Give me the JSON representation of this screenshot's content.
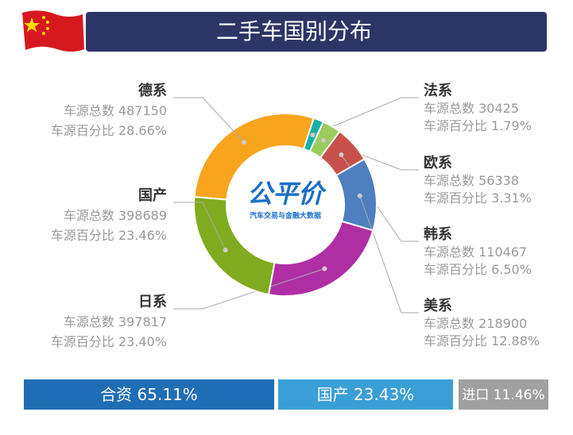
{
  "chart_data": {
    "type": "pie",
    "title": "二手车国别分布",
    "logo": {
      "name": "公平价",
      "tagline": "汽车交易与金融大数据"
    },
    "categories": [
      "德系",
      "法系",
      "欧系",
      "韩系",
      "美系",
      "日系",
      "国产"
    ],
    "values": [
      28.66,
      1.79,
      3.31,
      6.5,
      12.88,
      23.4,
      23.46
    ],
    "value_labels": [
      "28.66%",
      "1.79%",
      "3.31%",
      "6.50%",
      "12.88%",
      "23.40%",
      "23.46%"
    ],
    "counts": [
      487150,
      30425,
      56338,
      110467,
      218900,
      397817,
      398689
    ],
    "count_prefix": "车源总数",
    "percent_prefix": "车源百分比",
    "colors": [
      "#f8a41d",
      "#16b1a5",
      "#9ccc5c",
      "#c9504a",
      "#4e7fc0",
      "#b02ea4",
      "#7fab1f"
    ],
    "summary": {
      "categories": [
        "合资",
        "国产",
        "进口"
      ],
      "values": [
        65.11,
        23.43,
        11.46
      ],
      "value_labels": [
        "65.11%",
        "23.43%",
        "11.46%"
      ],
      "colors": [
        "#1f6db4",
        "#3a9fd6",
        "#a0a0a0"
      ]
    }
  }
}
